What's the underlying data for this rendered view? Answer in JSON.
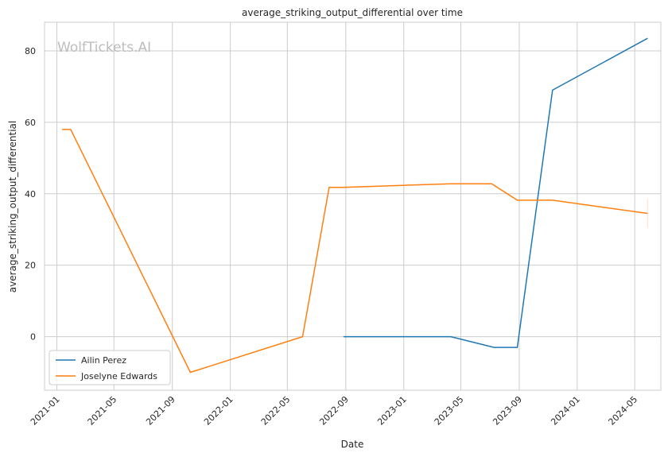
{
  "chart_data": {
    "type": "line",
    "title": "average_striking_output_differential over time",
    "xlabel": "Date",
    "ylabel": "average_striking_output_differential",
    "watermark": "WolfTickets.AI",
    "x_type": "date",
    "xlim": [
      "2020-12-06",
      "2024-06-25"
    ],
    "ylim": [
      -15,
      88
    ],
    "x_ticks": [
      "2021-01",
      "2021-05",
      "2021-09",
      "2022-01",
      "2022-05",
      "2022-09",
      "2023-01",
      "2023-05",
      "2023-09",
      "2024-01",
      "2024-05"
    ],
    "y_ticks": [
      0,
      20,
      40,
      60,
      80
    ],
    "grid": true,
    "legend_position": "lower-left",
    "series": [
      {
        "name": "Ailin Perez",
        "color": "#1f77b4",
        "points": [
          [
            "2022-08-27",
            0
          ],
          [
            "2023-04-10",
            0
          ],
          [
            "2023-07-10",
            -3
          ],
          [
            "2023-08-28",
            -3
          ],
          [
            "2023-11-10",
            69
          ],
          [
            "2024-05-28",
            83.5
          ]
        ]
      },
      {
        "name": "Joselyne Edwards",
        "color": "#ff7f0e",
        "points": [
          [
            "2021-01-12",
            58
          ],
          [
            "2021-01-30",
            58
          ],
          [
            "2021-10-09",
            -10
          ],
          [
            "2022-06-02",
            0
          ],
          [
            "2022-07-28",
            41.8
          ],
          [
            "2022-08-27",
            41.8
          ],
          [
            "2023-04-10",
            42.8
          ],
          [
            "2023-07-05",
            42.8
          ],
          [
            "2023-08-28",
            38.2
          ],
          [
            "2023-11-10",
            38.2
          ],
          [
            "2024-05-28",
            34.5
          ]
        ]
      }
    ]
  }
}
